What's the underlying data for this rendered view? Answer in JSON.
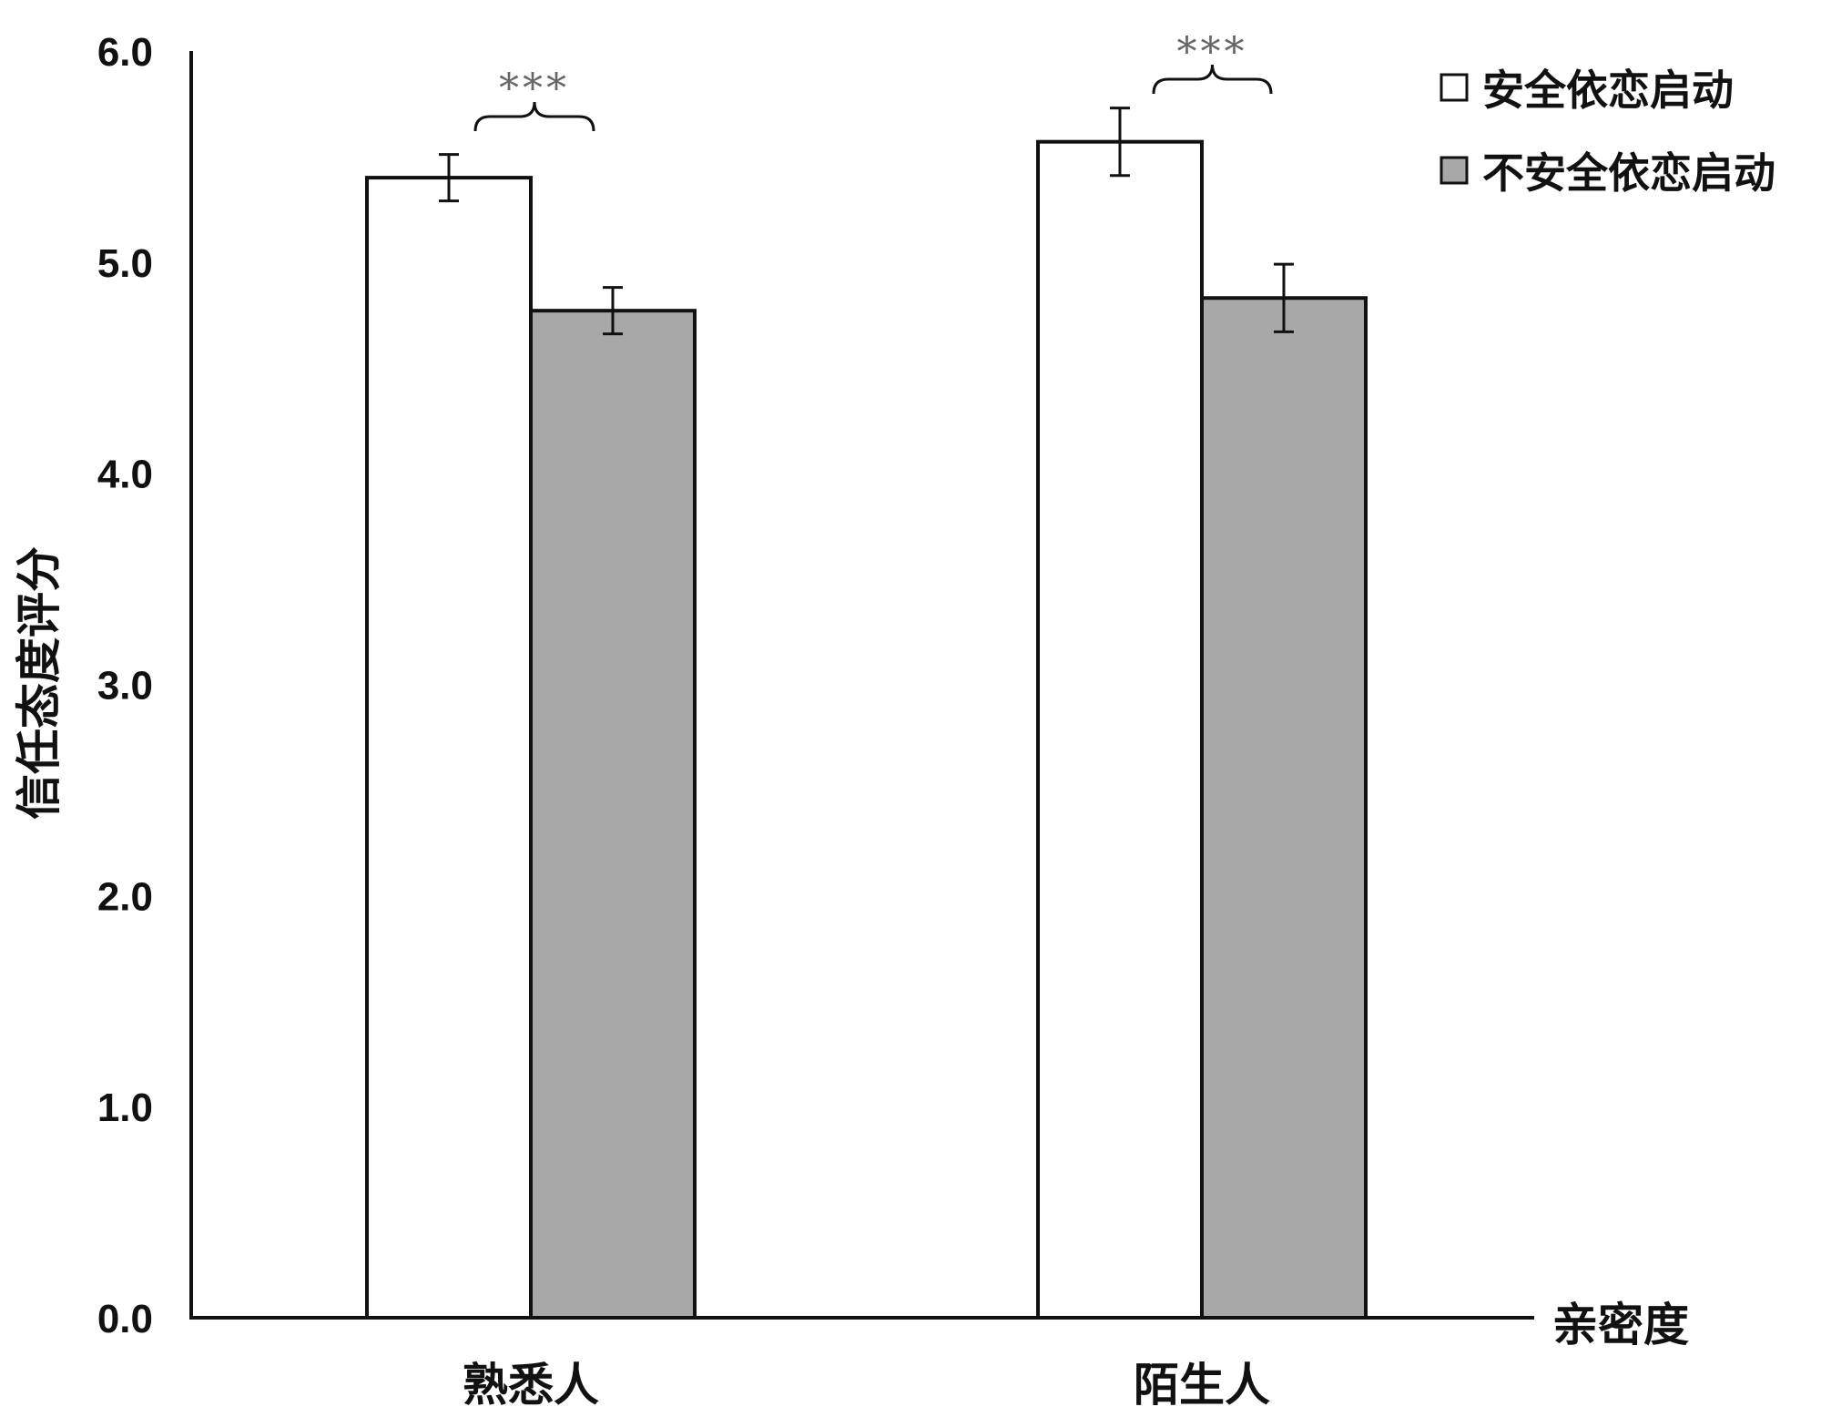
{
  "chart_data": {
    "type": "bar",
    "categories": [
      "熟悉人",
      "陌生人"
    ],
    "series": [
      {
        "name": "安全依恋启动",
        "values": [
          5.4,
          5.57
        ],
        "errors": [
          0.11,
          0.16
        ],
        "color": "#ffffff"
      },
      {
        "name": "不安全依恋启动",
        "values": [
          4.77,
          4.83
        ],
        "errors": [
          0.11,
          0.16
        ],
        "color": "#a8a8a8"
      }
    ],
    "xlabel": "亲密度",
    "ylabel": "信任态度评分",
    "ylim": [
      0,
      6
    ],
    "yticks": [
      "0.0",
      "1.0",
      "2.0",
      "3.0",
      "4.0",
      "5.0",
      "6.0"
    ],
    "legend_position": "top-right",
    "grid": false,
    "annotations": [
      {
        "category": "熟悉人",
        "text": "***"
      },
      {
        "category": "陌生人",
        "text": "***"
      }
    ]
  }
}
